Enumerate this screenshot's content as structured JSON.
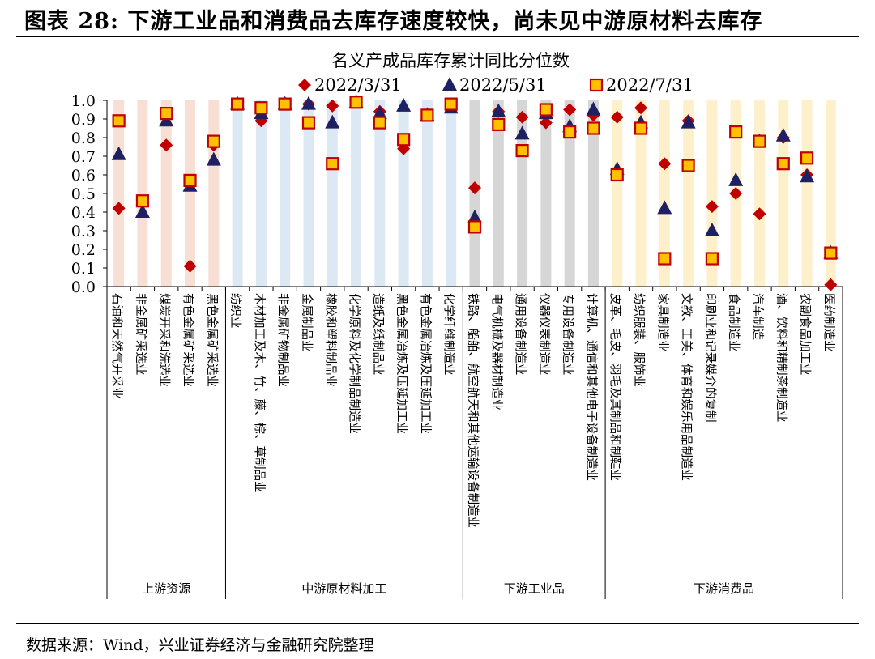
{
  "figure": {
    "title": "图表 28:  下游工业品和消费品去库存速度较快，尚未见中游原材料去库存",
    "source": "数据来源：Wind，兴业证券经济与金融研究院整理"
  },
  "colors": {
    "diamond": "#c00000",
    "triangle": "#1f2063",
    "square_fill": "#ffc000",
    "square_edge": "#c00000",
    "band_upstream": "#f8dfd3",
    "band_midstream": "#dce8f4",
    "band_downstream_industrial": "#d6d6d6",
    "band_downstream_consumer": "#fdf0cb"
  },
  "chart_data": {
    "type": "scatter",
    "title": "名义产成品库存累计同比分位数",
    "ylim": [
      0,
      1.0
    ],
    "yticks": [
      "0.0",
      "0.1",
      "0.2",
      "0.3",
      "0.4",
      "0.5",
      "0.6",
      "0.7",
      "0.8",
      "0.9",
      "1.0"
    ],
    "categories": [
      "石油和天然气开采业",
      "非金属矿采选业",
      "煤炭开采和洗选业",
      "有色金属矿采选业",
      "黑色金属矿采选业",
      "纺织业",
      "木材加工及木、竹、藤、棕、草制品业",
      "非金属矿物制品业",
      "金属制品业",
      "橡胶和塑料制品业",
      "化学原料及化学制品制造业",
      "造纸及纸制品业",
      "黑色金属冶炼及压延加工业",
      "有色金属冶炼及压延加工业",
      "化学纤维制造业",
      "铁路、船舶、航空航天和其他运输设备制造业",
      "电气机械及器材制造业",
      "通用设备制造业",
      "仪器仪表制造业",
      "专用设备制造业",
      "计算机、通信和其他电子设备制造业",
      "皮革、毛皮、羽毛及其制品和制鞋业",
      "纺织服装、服饰业",
      "家具制造业",
      "文教、工美、体育和娱乐用品制造业",
      "印刷业和记录媒介的复制",
      "食品制造业",
      "汽车制造",
      "酒、饮料和精制茶制造业",
      "农副食品加工业",
      "医药制造业"
    ],
    "groups": [
      {
        "name": "上游资源",
        "count": 5,
        "band": "band_upstream"
      },
      {
        "name": "中游原材料加工",
        "count": 10,
        "band": "band_midstream"
      },
      {
        "name": "下游工业品",
        "count": 6,
        "band": "band_downstream_industrial"
      },
      {
        "name": "下游消费品",
        "count": 10,
        "band": "band_downstream_consumer"
      }
    ],
    "series": [
      {
        "name": "2022/3/31",
        "marker": "diamond",
        "values": [
          0.42,
          0.45,
          0.76,
          0.11,
          0.76,
          0.98,
          0.89,
          0.98,
          0.98,
          0.97,
          0.99,
          0.94,
          0.74,
          0.92,
          0.98,
          0.53,
          0.94,
          0.91,
          0.88,
          0.95,
          0.92,
          0.91,
          0.96,
          0.66,
          0.89,
          0.43,
          0.5,
          0.39,
          0.8,
          0.6,
          0.01
        ]
      },
      {
        "name": "2022/5/31",
        "marker": "triangle",
        "values": [
          0.71,
          0.4,
          0.89,
          0.54,
          0.68,
          0.98,
          0.93,
          0.98,
          0.98,
          0.88,
          0.99,
          0.93,
          0.97,
          0.92,
          0.96,
          0.37,
          0.94,
          0.82,
          0.93,
          0.86,
          0.95,
          0.63,
          0.88,
          0.42,
          0.88,
          0.3,
          0.57,
          0.78,
          0.81,
          0.59,
          0.18
        ]
      },
      {
        "name": "2022/7/31",
        "marker": "square",
        "values": [
          0.89,
          0.46,
          0.93,
          0.57,
          0.78,
          0.98,
          0.96,
          0.98,
          0.88,
          0.66,
          0.99,
          0.88,
          0.79,
          0.92,
          0.98,
          0.32,
          0.87,
          0.73,
          0.95,
          0.83,
          0.85,
          0.6,
          0.85,
          0.15,
          0.65,
          0.15,
          0.83,
          0.78,
          0.66,
          0.69,
          0.18
        ]
      }
    ]
  }
}
